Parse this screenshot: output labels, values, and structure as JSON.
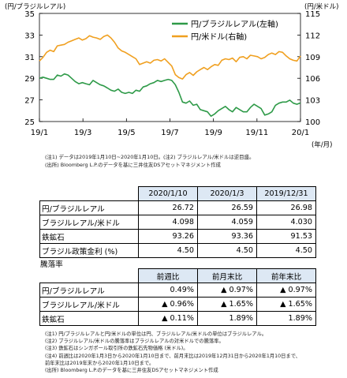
{
  "chart_data": {
    "type": "line",
    "left_axis_label": "(円/ブラジルレアル)",
    "right_axis_label": "(円/米ドル)",
    "x_unit_label": "(年/月)",
    "x_ticks": [
      "19/1",
      "19/3",
      "19/5",
      "19/7",
      "19/9",
      "19/11",
      "20/1"
    ],
    "left_ticks": [
      "35",
      "33",
      "31",
      "29",
      "27",
      "25"
    ],
    "right_ticks": [
      "115",
      "112",
      "109",
      "106",
      "103",
      "100"
    ],
    "ylim_left": [
      25,
      35
    ],
    "ylim_right": [
      100,
      115
    ],
    "grid": false,
    "legend_position": "top-right",
    "series": [
      {
        "name": "円/ブラジルレアル(左軸)",
        "axis": "left",
        "color": "#2e9a48",
        "values": [
          29.0,
          29.1,
          29.0,
          28.9,
          28.9,
          29.3,
          29.2,
          29.4,
          29.3,
          29.0,
          28.7,
          28.5,
          28.6,
          28.5,
          28.4,
          28.8,
          28.6,
          28.4,
          28.3,
          28.1,
          27.9,
          27.8,
          28.0,
          27.7,
          27.6,
          27.7,
          27.6,
          27.9,
          27.8,
          28.2,
          28.3,
          28.5,
          28.6,
          28.8,
          28.7,
          28.8,
          28.9,
          28.8,
          28.4,
          27.7,
          26.8,
          26.7,
          26.9,
          26.5,
          26.6,
          26.1,
          26.0,
          25.9,
          25.5,
          25.7,
          26.0,
          26.2,
          26.4,
          26.1,
          25.9,
          26.3,
          26.1,
          25.9,
          25.9,
          26.3,
          26.6,
          26.4,
          26.2,
          25.6,
          25.7,
          25.9,
          26.5,
          26.7,
          26.8,
          26.8,
          26.98,
          26.7,
          26.6,
          26.72
        ]
      },
      {
        "name": "円/米ドル(右軸)",
        "axis": "right",
        "color": "#f0a020",
        "values": [
          108.4,
          108.9,
          109.6,
          109.9,
          109.7,
          110.5,
          110.6,
          110.7,
          111.0,
          111.2,
          111.4,
          111.6,
          111.3,
          111.5,
          111.9,
          111.7,
          111.6,
          111.4,
          111.8,
          112.0,
          111.6,
          111.0,
          110.2,
          109.8,
          109.6,
          109.3,
          109.0,
          108.7,
          107.9,
          108.1,
          108.3,
          108.1,
          108.5,
          108.6,
          108.4,
          108.7,
          108.2,
          107.7,
          106.5,
          106.1,
          105.9,
          106.5,
          106.8,
          106.4,
          106.9,
          107.2,
          107.5,
          107.2,
          107.6,
          107.9,
          107.8,
          108.5,
          108.7,
          108.6,
          108.8,
          108.3,
          108.9,
          109.0,
          108.7,
          109.2,
          109.1,
          109.0,
          108.7,
          108.9,
          109.3,
          109.5,
          109.3,
          109.7,
          109.6,
          109.1,
          108.7,
          108.5,
          108.4,
          109.1
        ]
      }
    ]
  },
  "notes_top": [
    "(注1) データは2019年1月10日~2020年1月10日。(注2) ブラジルレアル/米ドルは逆目盛。",
    "(出所) Bloomberg L.P.のデータを基に三井住友DSアセットマネジメント作成"
  ],
  "table1": {
    "headers": [
      "2020/1/10",
      "2020/1/3",
      "2019/12/31"
    ],
    "rows": [
      {
        "label": "円/ブラジルレアル",
        "values": [
          "26.72",
          "26.59",
          "26.98"
        ]
      },
      {
        "label": "ブラジルレアル/米ドル",
        "values": [
          "4.098",
          "4.059",
          "4.030"
        ]
      },
      {
        "label": "鉄鉱石",
        "values": [
          "93.26",
          "93.36",
          "91.53"
        ]
      },
      {
        "label": "ブラジル政策金利 (%)",
        "values": [
          "4.50",
          "4.50",
          "4.50"
        ]
      }
    ]
  },
  "table2": {
    "title": "騰落率",
    "headers": [
      "前週比",
      "前月末比",
      "前年末比"
    ],
    "rows": [
      {
        "label": "円/ブラジルレアル",
        "values": [
          "0.49%",
          "▲ 0.97%",
          "▲ 0.97%"
        ]
      },
      {
        "label": "ブラジルレアル/米ドル",
        "values": [
          "▲ 0.96%",
          "▲ 1.65%",
          "▲ 1.65%"
        ]
      },
      {
        "label": "鉄鉱石",
        "values": [
          "▲ 0.11%",
          "1.89%",
          "1.89%"
        ]
      }
    ]
  },
  "notes_bottom": [
    "(注1) 円/ブラジルレアルと円/米ドルの単位は円、ブラジルレアル/米ドルの単位はブラジルレアル。",
    "(注2) ブラジルレアル/米ドルの騰落率はブラジルレアルの対米ドルでの騰落率。",
    "(注3) 鉄鉱石はシンガポール取引所の鉄鉱石先物価格 (米ドル)。",
    "(注4) 前週比は2020年1月3日から2020年1月10日まで、前月末比は2019年12月31日から2020年1月10日まで、",
    "      前年末比は2019年末から2020年1月10日まで。",
    "(出所) Bloomberg L.P.のデータを基に三井住友DSアセットマネジメント作成"
  ]
}
